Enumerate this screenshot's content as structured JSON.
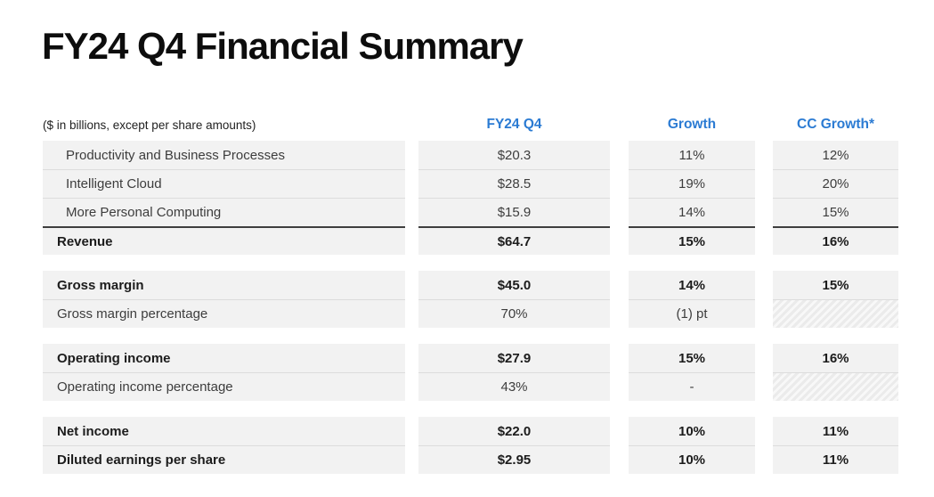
{
  "title": "FY24 Q4 Financial Summary",
  "note": "($ in billions, except per share amounts)",
  "colors": {
    "accent_blue": "#2b7bd3",
    "row_background": "#f2f2f2",
    "separator": "#dcdcdc",
    "sum_line": "#3f3f3f",
    "title_text": "#0d0d0d"
  },
  "table": {
    "columns": [
      "FY24 Q4",
      "Growth",
      "CC Growth*"
    ],
    "blocks": [
      {
        "rows": [
          {
            "label": "Productivity and Business Processes",
            "values": [
              "$20.3",
              "11%",
              "12%"
            ]
          },
          {
            "label": "Intelligent Cloud",
            "values": [
              "$28.5",
              "19%",
              "20%"
            ]
          },
          {
            "label": "More Personal Computing",
            "values": [
              "$15.9",
              "14%",
              "15%"
            ]
          },
          {
            "label": "Revenue",
            "values": [
              "$64.7",
              "15%",
              "16%"
            ]
          }
        ]
      },
      {
        "rows": [
          {
            "label": "Gross margin",
            "values": [
              "$45.0",
              "14%",
              "15%"
            ]
          },
          {
            "label": "Gross margin percentage",
            "values": [
              "70%",
              "(1) pt",
              null
            ]
          }
        ]
      },
      {
        "rows": [
          {
            "label": "Operating income",
            "values": [
              "$27.9",
              "15%",
              "16%"
            ]
          },
          {
            "label": "Operating income percentage",
            "values": [
              "43%",
              "-",
              null
            ]
          }
        ]
      },
      {
        "rows": [
          {
            "label": "Net income",
            "values": [
              "$22.0",
              "10%",
              "11%"
            ]
          },
          {
            "label": "Diluted earnings per share",
            "values": [
              "$2.95",
              "10%",
              "11%"
            ]
          }
        ]
      }
    ]
  }
}
